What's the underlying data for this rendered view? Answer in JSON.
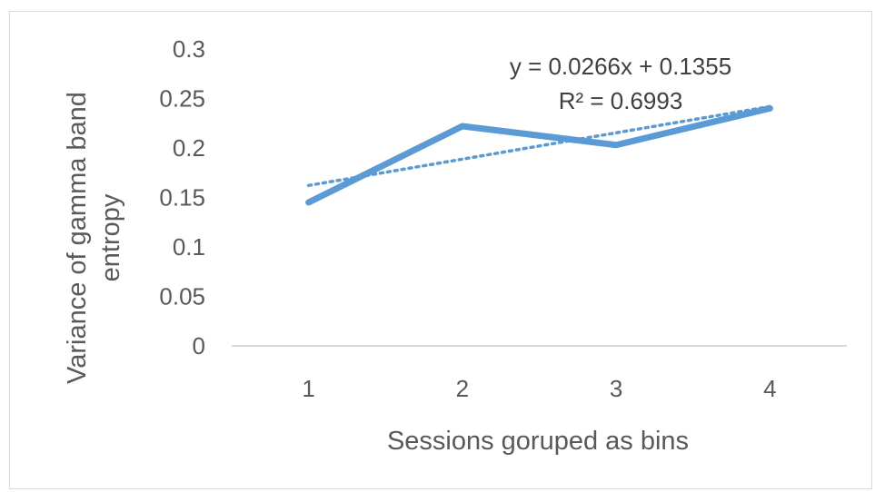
{
  "chart_data": {
    "type": "line",
    "categories": [
      "1",
      "2",
      "3",
      "4"
    ],
    "series": [
      {
        "values": [
          0.145,
          0.222,
          0.203,
          0.24
        ],
        "color": "#5b9bd5"
      }
    ],
    "trendline": {
      "kind": "linear",
      "slope": 0.0266,
      "intercept": 0.1355,
      "color": "#5b9bd5",
      "style": "dotted",
      "equation_label": "y = 0.0266x + 0.1355",
      "r2_label": "R² = 0.6993"
    },
    "xlabel": "Sessions goruped as bins",
    "ylabel_lines": [
      "Variance of gamma band",
      "entropy"
    ],
    "ylim": [
      0,
      0.3
    ],
    "yticks": [
      "0",
      "0.05",
      "0.1",
      "0.15",
      "0.2",
      "0.25",
      "0.3"
    ],
    "grid": false,
    "legend": "none"
  }
}
